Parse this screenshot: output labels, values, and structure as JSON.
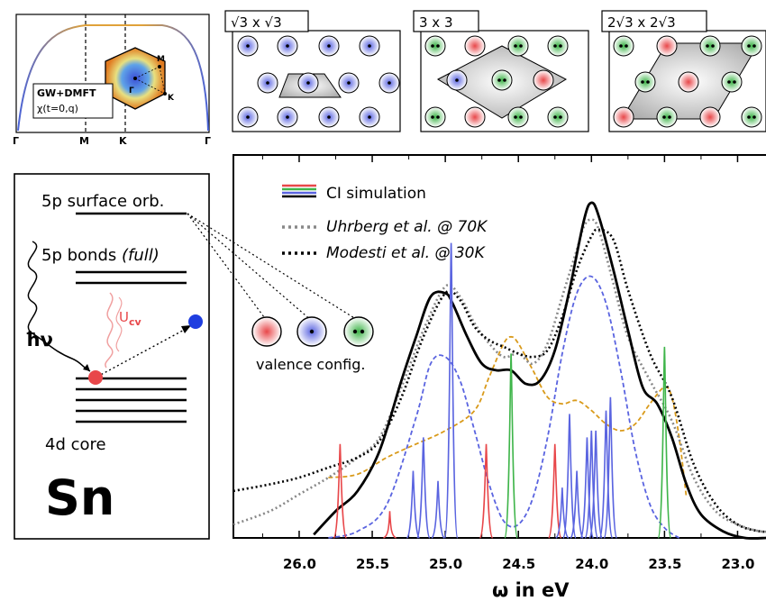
{
  "figure": {
    "band_panel": {
      "label_line1": "GW+DMFT",
      "label_line2": "χ(t=0,q)",
      "kpath": [
        "Γ",
        "M",
        "K",
        "Γ"
      ],
      "bz_points": [
        "M",
        "Γ",
        "K"
      ]
    },
    "phase_panels": [
      {
        "title": "√3 x √3"
      },
      {
        "title": "3 x 3"
      },
      {
        "title": "2√3 x 2√3"
      }
    ],
    "energy_levels": {
      "surface": "5p surface orb.",
      "bonds": "5p bonds",
      "bonds_note": "(full)",
      "photon": "ħν",
      "interaction": "U",
      "interaction_sub": "cv",
      "core": "4d core",
      "element": "Sn"
    },
    "config": {
      "legend": "valence config."
    },
    "legend": {
      "ci": "CI simulation",
      "uhrberg": "Uhrberg et al. @ 70K",
      "modesti": "Modesti et al. @ 30K"
    },
    "colors": {
      "red": "#e8474a",
      "blue": "#5a64e0",
      "green": "#3fb54a",
      "orange": "#d99a1a",
      "exp_gray": "#888888"
    }
  },
  "chart_data": {
    "type": "line",
    "xlabel": "ω in eV",
    "x_reversed": true,
    "xlim": [
      26.45,
      22.75
    ],
    "ticks": [
      "26.0",
      "25.5",
      "25.0",
      "24.5",
      "24.0",
      "23.5",
      "23.0"
    ],
    "tick_values": [
      26.0,
      25.5,
      25.0,
      24.5,
      24.0,
      23.5,
      23.0
    ],
    "series": [
      {
        "name": "CI simulation",
        "color": "#000000",
        "style": "solid",
        "x": [
          25.9,
          25.75,
          25.6,
          25.45,
          25.3,
          25.2,
          25.1,
          25.0,
          24.95,
          24.85,
          24.75,
          24.65,
          24.55,
          24.45,
          24.35,
          24.25,
          24.15,
          24.05,
          24.0,
          23.95,
          23.85,
          23.75,
          23.65,
          23.55,
          23.45,
          23.35,
          23.25,
          23.1,
          22.95,
          22.8
        ],
        "y": [
          0.01,
          0.08,
          0.14,
          0.26,
          0.47,
          0.6,
          0.72,
          0.73,
          0.7,
          0.6,
          0.52,
          0.5,
          0.5,
          0.46,
          0.47,
          0.56,
          0.74,
          0.95,
          1.0,
          0.96,
          0.8,
          0.62,
          0.45,
          0.4,
          0.3,
          0.16,
          0.07,
          0.02,
          0.0,
          0.0
        ]
      },
      {
        "name": "Uhrberg et al. @ 70K",
        "color": "#888888",
        "style": "dotted",
        "x": [
          26.45,
          26.2,
          26.0,
          25.8,
          25.6,
          25.45,
          25.3,
          25.15,
          25.0,
          24.9,
          24.8,
          24.7,
          24.6,
          24.5,
          24.4,
          24.3,
          24.2,
          24.1,
          24.05,
          24.0,
          23.95,
          23.85,
          23.75,
          23.6,
          23.45,
          23.3,
          23.15,
          23.0,
          22.85,
          22.75
        ],
        "y": [
          0.04,
          0.08,
          0.13,
          0.18,
          0.24,
          0.3,
          0.45,
          0.62,
          0.75,
          0.72,
          0.64,
          0.58,
          0.54,
          0.55,
          0.52,
          0.58,
          0.72,
          0.86,
          0.93,
          0.95,
          0.92,
          0.76,
          0.6,
          0.47,
          0.35,
          0.18,
          0.08,
          0.04,
          0.02,
          0.02
        ]
      },
      {
        "name": "Modesti et al. @ 30K",
        "color": "#000000",
        "style": "dotted",
        "x": [
          26.45,
          26.2,
          26.0,
          25.8,
          25.6,
          25.45,
          25.3,
          25.15,
          25.0,
          24.9,
          24.8,
          24.7,
          24.6,
          24.5,
          24.4,
          24.3,
          24.2,
          24.1,
          24.0,
          23.95,
          23.85,
          23.75,
          23.6,
          23.45,
          23.3,
          23.15,
          23.0,
          22.85,
          22.75
        ],
        "y": [
          0.14,
          0.16,
          0.18,
          0.21,
          0.24,
          0.29,
          0.42,
          0.6,
          0.73,
          0.71,
          0.63,
          0.59,
          0.57,
          0.55,
          0.54,
          0.56,
          0.66,
          0.8,
          0.9,
          0.92,
          0.89,
          0.74,
          0.55,
          0.42,
          0.22,
          0.1,
          0.04,
          0.02,
          0.02
        ]
      },
      {
        "name": "",
        "color": "#5a64e0",
        "style": "dashed",
        "x": [
          25.8,
          25.6,
          25.4,
          25.2,
          25.1,
          25.0,
          24.9,
          24.8,
          24.7,
          24.6,
          24.5,
          24.4,
          24.3,
          24.2,
          24.1,
          24.0,
          23.9,
          23.8,
          23.7,
          23.6,
          23.5,
          23.4
        ],
        "y": [
          0.0,
          0.02,
          0.1,
          0.36,
          0.52,
          0.54,
          0.47,
          0.32,
          0.16,
          0.05,
          0.04,
          0.12,
          0.3,
          0.55,
          0.73,
          0.78,
          0.7,
          0.5,
          0.26,
          0.1,
          0.03,
          0.0
        ]
      },
      {
        "name": "",
        "color": "#d99a1a",
        "style": "dashed",
        "x": [
          25.8,
          25.6,
          25.4,
          25.2,
          25.0,
          24.8,
          24.7,
          24.6,
          24.55,
          24.5,
          24.4,
          24.3,
          24.2,
          24.1,
          24.0,
          23.9,
          23.8,
          23.7,
          23.6,
          23.5,
          23.45,
          23.4,
          23.35
        ],
        "y": [
          0.18,
          0.19,
          0.24,
          0.28,
          0.32,
          0.38,
          0.48,
          0.58,
          0.6,
          0.58,
          0.5,
          0.42,
          0.4,
          0.41,
          0.38,
          0.34,
          0.32,
          0.34,
          0.4,
          0.45,
          0.42,
          0.3,
          0.12
        ]
      }
    ],
    "sticks": [
      {
        "color": "#e8474a",
        "x": [
          25.72,
          25.38,
          24.72,
          24.25
        ],
        "h": [
          0.28,
          0.08,
          0.28,
          0.28
        ]
      },
      {
        "color": "#5a64e0",
        "x": [
          25.22,
          25.15,
          25.05,
          24.96,
          24.2,
          24.15,
          24.1,
          24.03,
          24.0,
          23.97,
          23.9,
          23.87
        ],
        "h": [
          0.2,
          0.3,
          0.17,
          0.88,
          0.15,
          0.37,
          0.2,
          0.3,
          0.32,
          0.32,
          0.38,
          0.42
        ]
      },
      {
        "color": "#3fb54a",
        "x": [
          24.55,
          23.5
        ],
        "h": [
          0.55,
          0.57
        ]
      }
    ]
  }
}
